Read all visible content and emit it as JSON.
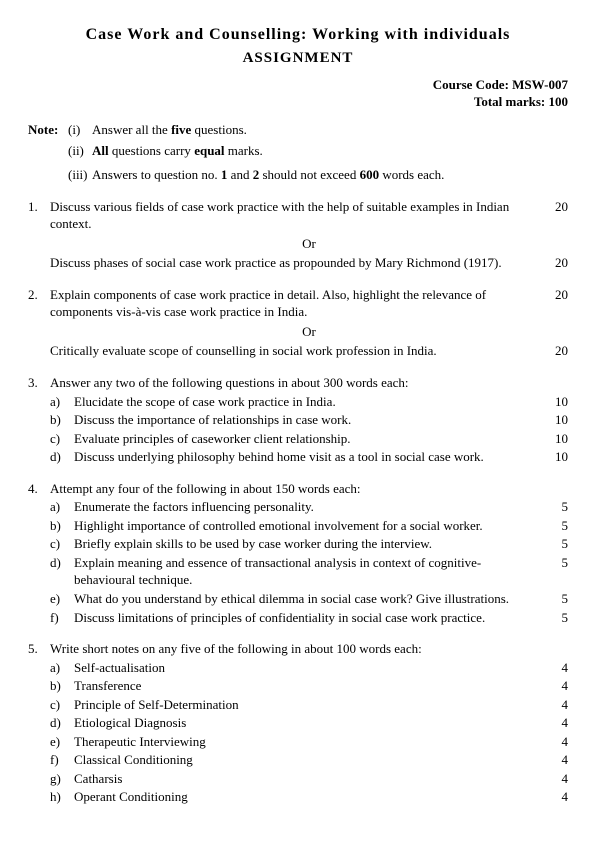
{
  "header": {
    "title": "Case Work and Counselling: Working with individuals",
    "subtitle": "ASSIGNMENT",
    "course_code_label": "Course Code: MSW-007",
    "total_marks_label": "Total marks: 100"
  },
  "notes": {
    "label": "Note:",
    "items": [
      {
        "roman": "(i)",
        "html": "Answer all the <b>five</b> questions."
      },
      {
        "roman": "(ii)",
        "html": "<b>All</b> questions carry <b>equal</b> marks."
      },
      {
        "roman": "(iii)",
        "html": "Answers to question no. <b>1</b> and <b>2</b> should not exceed <b>600</b> words each."
      }
    ]
  },
  "q1": {
    "num": "1.",
    "a_text": "Discuss various fields of case work practice with the help of suitable examples in Indian context.",
    "a_marks": "20",
    "or": "Or",
    "b_text": "Discuss phases of social case work practice as propounded by Mary Richmond (1917).",
    "b_marks": "20"
  },
  "q2": {
    "num": "2.",
    "a_text": "Explain components of case work practice in detail. Also, highlight the relevance of components vis-à-vis case work practice in India.",
    "a_marks": "20",
    "or": "Or",
    "b_text": "Critically evaluate scope of counselling in social work profession in India.",
    "b_marks": "20"
  },
  "q3": {
    "num": "3.",
    "intro": "Answer any two of the following questions in about 300 words each:",
    "subs": [
      {
        "label": "a)",
        "text": "Elucidate the scope of case work practice in India.",
        "marks": "10"
      },
      {
        "label": "b)",
        "text": "Discuss the importance of relationships in case work.",
        "marks": "10"
      },
      {
        "label": "c)",
        "text": "Evaluate principles of caseworker client relationship.",
        "marks": "10"
      },
      {
        "label": "d)",
        "text": "Discuss underlying philosophy behind home visit as a tool in social case work.",
        "marks": "10"
      }
    ]
  },
  "q4": {
    "num": "4.",
    "intro": "Attempt any four of the following in about 150 words each:",
    "subs": [
      {
        "label": "a)",
        "text": "Enumerate the factors influencing personality.",
        "marks": "5"
      },
      {
        "label": "b)",
        "text": "Highlight importance of controlled emotional involvement for a social worker.",
        "marks": "5"
      },
      {
        "label": "c)",
        "text": "Briefly explain skills to be used by case worker during the interview.",
        "marks": "5"
      },
      {
        "label": "d)",
        "text": "Explain meaning and essence of transactional analysis in context of cognitive-behavioural technique.",
        "marks": "5"
      },
      {
        "label": "e)",
        "text": "What do you understand by ethical dilemma in social case work? Give illustrations.",
        "marks": "5"
      },
      {
        "label": "f)",
        "text": "Discuss limitations of principles of confidentiality in social case work practice.",
        "marks": "5"
      }
    ]
  },
  "q5": {
    "num": "5.",
    "intro": "Write short notes on any five of the following in about 100 words each:",
    "subs": [
      {
        "label": "a)",
        "text": "Self-actualisation",
        "marks": "4"
      },
      {
        "label": "b)",
        "text": "Transference",
        "marks": "4"
      },
      {
        "label": "c)",
        "text": "Principle of Self-Determination",
        "marks": "4"
      },
      {
        "label": "d)",
        "text": "Etiological Diagnosis",
        "marks": "4"
      },
      {
        "label": "e)",
        "text": "Therapeutic Interviewing",
        "marks": "4"
      },
      {
        "label": "f)",
        "text": "Classical Conditioning",
        "marks": "4"
      },
      {
        "label": "g)",
        "text": "Catharsis",
        "marks": "4"
      },
      {
        "label": "h)",
        "text": "Operant Conditioning",
        "marks": "4"
      }
    ]
  }
}
